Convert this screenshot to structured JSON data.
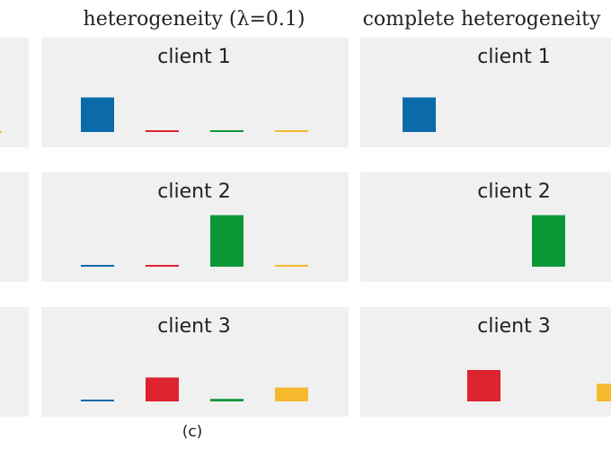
{
  "figure": {
    "caption": "(c)",
    "colors": {
      "blue": "#0b6aa9",
      "red": "#dd2430",
      "green": "#0c9837",
      "yellow": "#f6b92e",
      "panel": "#f0f0f0"
    }
  },
  "chart_data": [
    {
      "type": "bar",
      "column": "partial",
      "title": "heterogeneity (λ=0.1)",
      "ylim": [
        0,
        1
      ],
      "categories": [
        "",
        "",
        "",
        ""
      ],
      "colors": [
        "#0b6aa9",
        "#dd2430",
        "#0c9837",
        "#f6b92e"
      ],
      "clients": [
        {
          "title": "client 1",
          "values": [
            0.55,
            0.02,
            0.02,
            0.02
          ]
        },
        {
          "title": "client 2",
          "values": [
            0.02,
            0.02,
            0.82,
            0.02
          ]
        },
        {
          "title": "client 3",
          "values": [
            0.02,
            0.38,
            0.04,
            0.22
          ]
        }
      ]
    },
    {
      "type": "bar",
      "column": "complete",
      "title": "complete heterogeneity",
      "ylim": [
        0,
        1
      ],
      "categories": [
        "",
        "",
        "",
        ""
      ],
      "colors": [
        "#0b6aa9",
        "#dd2430",
        "#0c9837",
        "#f6b92e"
      ],
      "clients": [
        {
          "title": "client 1",
          "values": [
            0.55,
            0,
            0,
            0
          ]
        },
        {
          "title": "client 2",
          "values": [
            0,
            0,
            0.82,
            0
          ]
        },
        {
          "title": "client 3",
          "values": [
            0,
            0.5,
            0,
            0.28
          ]
        }
      ]
    }
  ]
}
